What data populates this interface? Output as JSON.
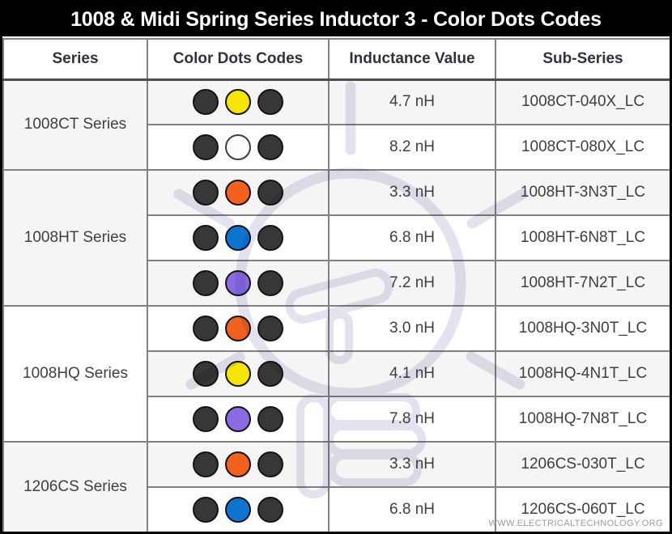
{
  "title": "1008 & Midi Spring Series Inductor 3 - Color Dots Codes",
  "columns": [
    "Series",
    "Color Dots Codes",
    "Inductance Value",
    "Sub-Series"
  ],
  "colors": {
    "title_bar_bg": "#000000",
    "title_bar_text": "#FFFFFF",
    "row_alt": "#F5F5F5",
    "row_plain": "#FFFFFF",
    "cell_border": "#818181",
    "text": "#3E3E46",
    "watermark": "#E3E3EF",
    "dot_border": "#141414",
    "dot_fills": {
      "dark": "#373737",
      "yellow": "#F6E402",
      "white": "#FDFDFD",
      "orange": "#F2611D",
      "blue": "#0E74D2",
      "purple": "#8A6BE2"
    }
  },
  "groups": [
    {
      "series": "1008CT Series",
      "rows": [
        {
          "dots": [
            "dark",
            "yellow",
            "dark"
          ],
          "inductance": "4.7 nH",
          "sub_series": "1008CT-040X_LC"
        },
        {
          "dots": [
            "dark",
            "white",
            "dark"
          ],
          "inductance": "8.2 nH",
          "sub_series": "1008CT-080X_LC"
        }
      ]
    },
    {
      "series": "1008HT Series",
      "rows": [
        {
          "dots": [
            "dark",
            "orange",
            "dark"
          ],
          "inductance": "3.3 nH",
          "sub_series": "1008HT-3N3T_LC"
        },
        {
          "dots": [
            "dark",
            "blue",
            "dark"
          ],
          "inductance": "6.8 nH",
          "sub_series": "1008HT-6N8T_LC"
        },
        {
          "dots": [
            "dark",
            "purple",
            "dark"
          ],
          "inductance": "7.2 nH",
          "sub_series": "1008HT-7N2T_LC"
        }
      ]
    },
    {
      "series": "1008HQ Series",
      "rows": [
        {
          "dots": [
            "dark",
            "orange",
            "dark"
          ],
          "inductance": "3.0 nH",
          "sub_series": "1008HQ-3N0T_LC"
        },
        {
          "dots": [
            "dark",
            "yellow",
            "dark"
          ],
          "inductance": "4.1 nH",
          "sub_series": "1008HQ-4N1T_LC"
        },
        {
          "dots": [
            "dark",
            "purple",
            "dark"
          ],
          "inductance": "7.8 nH",
          "sub_series": "1008HQ-7N8T_LC"
        }
      ]
    },
    {
      "series": "1206CS Series",
      "rows": [
        {
          "dots": [
            "dark",
            "orange",
            "dark"
          ],
          "inductance": "3.3 nH",
          "sub_series": "1206CS-030T_LC"
        },
        {
          "dots": [
            "dark",
            "blue",
            "dark"
          ],
          "inductance": "6.8 nH",
          "sub_series": "1206CS-060T_LC"
        }
      ]
    }
  ],
  "footer": "WWW.ELECTRICALTECHNOLOGY.ORG",
  "chart_data": {
    "type": "table",
    "title": "1008 & Midi Spring Series Inductor 3 - Color Dots Codes",
    "columns": [
      "Series",
      "Color Dots Codes",
      "Inductance Value",
      "Sub-Series"
    ],
    "rows": [
      [
        "1008CT Series",
        "dark / yellow / dark",
        "4.7 nH",
        "1008CT-040X_LC"
      ],
      [
        "1008CT Series",
        "dark / white / dark",
        "8.2 nH",
        "1008CT-080X_LC"
      ],
      [
        "1008HT Series",
        "dark / orange / dark",
        "3.3 nH",
        "1008HT-3N3T_LC"
      ],
      [
        "1008HT Series",
        "dark / blue / dark",
        "6.8 nH",
        "1008HT-6N8T_LC"
      ],
      [
        "1008HT Series",
        "dark / purple / dark",
        "7.2 nH",
        "1008HT-7N2T_LC"
      ],
      [
        "1008HQ Series",
        "dark / orange / dark",
        "3.0 nH",
        "1008HQ-3N0T_LC"
      ],
      [
        "1008HQ Series",
        "dark / yellow / dark",
        "4.1 nH",
        "1008HQ-4N1T_LC"
      ],
      [
        "1008HQ Series",
        "dark / purple / dark",
        "7.8 nH",
        "1008HQ-7N8T_LC"
      ],
      [
        "1206CS Series",
        "dark / orange / dark",
        "3.3 nH",
        "1206CS-030T_LC"
      ],
      [
        "1206CS Series",
        "dark / blue / dark",
        "6.8 nH",
        "1206CS-060T_LC"
      ]
    ]
  }
}
